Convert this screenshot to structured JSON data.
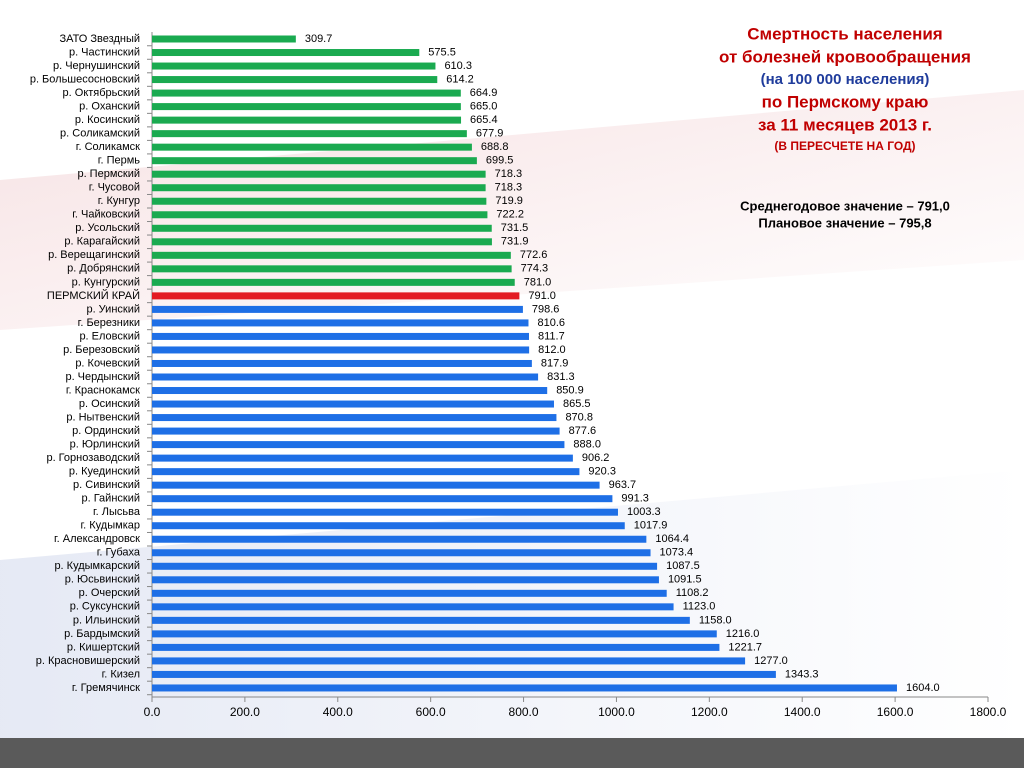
{
  "chart_data": {
    "type": "barh",
    "title_lines": [
      "Смертность населения",
      "от болезней кровообращения",
      "(на 100 000 населения)",
      "по Пермскому краю",
      "за 11 месяцев 2013 г.",
      "(В ПЕРЕСЧЕТЕ НА ГОД)"
    ],
    "annotations": [
      "Среднегодовое значение – 791,0",
      "Плановое значение – 795,8"
    ],
    "categories": [
      "ЗАТО Звездный",
      "р. Частинский",
      "р. Чернушинский",
      "р. Большесосновский",
      "р. Октябрьский",
      "р. Оханский",
      "р. Косинский",
      "р. Соликамский",
      "г. Соликамск",
      "г. Пермь",
      "р. Пермский",
      "г. Чусовой",
      "г. Кунгур",
      "г. Чайковский",
      "р. Усольский",
      "р. Карагайский",
      "р. Верещагинский",
      "р. Добрянский",
      "р. Кунгурский",
      "ПЕРМСКИЙ КРАЙ",
      "р. Уинский",
      "г. Березники",
      "р. Еловский",
      "р. Березовский",
      "р. Кочевский",
      "р. Чердынский",
      "г. Краснокамск",
      "р. Осинский",
      "р. Нытвенский",
      "р. Ординский",
      "р. Юрлинский",
      "р. Горнозаводский",
      "р. Куединский",
      "р. Сивинский",
      "р. Гайнский",
      "г. Лысьва",
      "г. Кудымкар",
      "г. Александровск",
      "г. Губаха",
      "р. Кудымкарский",
      "р. Юсьвинский",
      "р. Очерский",
      "р. Суксунский",
      "р. Ильинский",
      "р. Бардымский",
      "р. Кишертский",
      "р. Красновишерский",
      "г. Кизел",
      "г. Гремячинск"
    ],
    "values": [
      309.7,
      575.5,
      610.3,
      614.2,
      664.9,
      665.0,
      665.4,
      677.9,
      688.8,
      699.5,
      718.3,
      718.3,
      719.9,
      722.2,
      731.5,
      731.9,
      772.6,
      774.3,
      781.0,
      791.0,
      798.6,
      810.6,
      811.7,
      812.0,
      817.9,
      831.3,
      850.9,
      865.5,
      870.8,
      877.6,
      888.0,
      906.2,
      920.3,
      963.7,
      991.3,
      1003.3,
      1017.9,
      1064.4,
      1073.4,
      1087.5,
      1091.5,
      1108.2,
      1123.0,
      1158.0,
      1216.0,
      1221.7,
      1277.0,
      1343.3,
      1604.0
    ],
    "value_labels": [
      "309.7",
      "575.5",
      "610.3",
      "614.2",
      "664.9",
      "665.0",
      "665.4",
      "677.9",
      "688.8",
      "699.5",
      "718.3",
      "718.3",
      "719.9",
      "722.2",
      "731.5",
      "731.9",
      "772.6",
      "774.3",
      "781.0",
      "791.0",
      "798.6",
      "810.6",
      "811.7",
      "812.0",
      "817.9",
      "831.3",
      "850.9",
      "865.5",
      "870.8",
      "877.6",
      "888.0",
      "906.2",
      "920.3",
      "963.7",
      "991.3",
      "1003.3",
      "1017.9",
      "1064.4",
      "1073.4",
      "1087.5",
      "1091.5",
      "1108.2",
      "1123.0",
      "1158.0",
      "1216.0",
      "1221.7",
      "1277.0",
      "1343.3",
      "1604.0"
    ],
    "colors": [
      "#1aaa50",
      "#1aaa50",
      "#1aaa50",
      "#1aaa50",
      "#1aaa50",
      "#1aaa50",
      "#1aaa50",
      "#1aaa50",
      "#1aaa50",
      "#1aaa50",
      "#1aaa50",
      "#1aaa50",
      "#1aaa50",
      "#1aaa50",
      "#1aaa50",
      "#1aaa50",
      "#1aaa50",
      "#1aaa50",
      "#1aaa50",
      "#e31b23",
      "#1e6fe6",
      "#1e6fe6",
      "#1e6fe6",
      "#1e6fe6",
      "#1e6fe6",
      "#1e6fe6",
      "#1e6fe6",
      "#1e6fe6",
      "#1e6fe6",
      "#1e6fe6",
      "#1e6fe6",
      "#1e6fe6",
      "#1e6fe6",
      "#1e6fe6",
      "#1e6fe6",
      "#1e6fe6",
      "#1e6fe6",
      "#1e6fe6",
      "#1e6fe6",
      "#1e6fe6",
      "#1e6fe6",
      "#1e6fe6",
      "#1e6fe6",
      "#1e6fe6",
      "#1e6fe6",
      "#1e6fe6",
      "#1e6fe6",
      "#1e6fe6",
      "#1e6fe6"
    ],
    "xlim": [
      0,
      1800
    ],
    "xticks": [
      {
        "value": 0,
        "label": "0.0"
      },
      {
        "value": 200,
        "label": "200.0"
      },
      {
        "value": 400,
        "label": "400.0"
      },
      {
        "value": 600,
        "label": "600.0"
      },
      {
        "value": 800,
        "label": "800.0"
      },
      {
        "value": 1000,
        "label": "1000.0"
      },
      {
        "value": 1200,
        "label": "1200.0"
      },
      {
        "value": 1400,
        "label": "1400.0"
      },
      {
        "value": 1600,
        "label": "1600.0"
      },
      {
        "value": 1800,
        "label": "1800.0"
      }
    ]
  }
}
